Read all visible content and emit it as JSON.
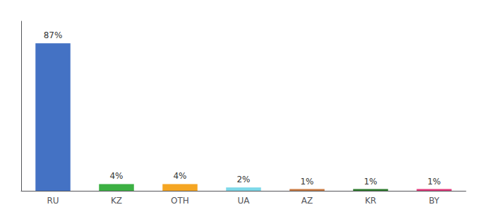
{
  "chart_data": {
    "type": "bar",
    "categories": [
      "RU",
      "KZ",
      "OTH",
      "UA",
      "AZ",
      "KR",
      "BY"
    ],
    "values": [
      87,
      4,
      4,
      2,
      1,
      1,
      1
    ],
    "value_labels": [
      "87%",
      "4%",
      "4%",
      "2%",
      "1%",
      "1%",
      "1%"
    ],
    "colors": [
      "#4472c4",
      "#3cb043",
      "#f5a623",
      "#7dd8e8",
      "#c87941",
      "#2d7a2d",
      "#e0397a"
    ],
    "data_labels": true,
    "ylim": [
      0,
      100
    ],
    "tick_labels": "x",
    "grid": false
  }
}
